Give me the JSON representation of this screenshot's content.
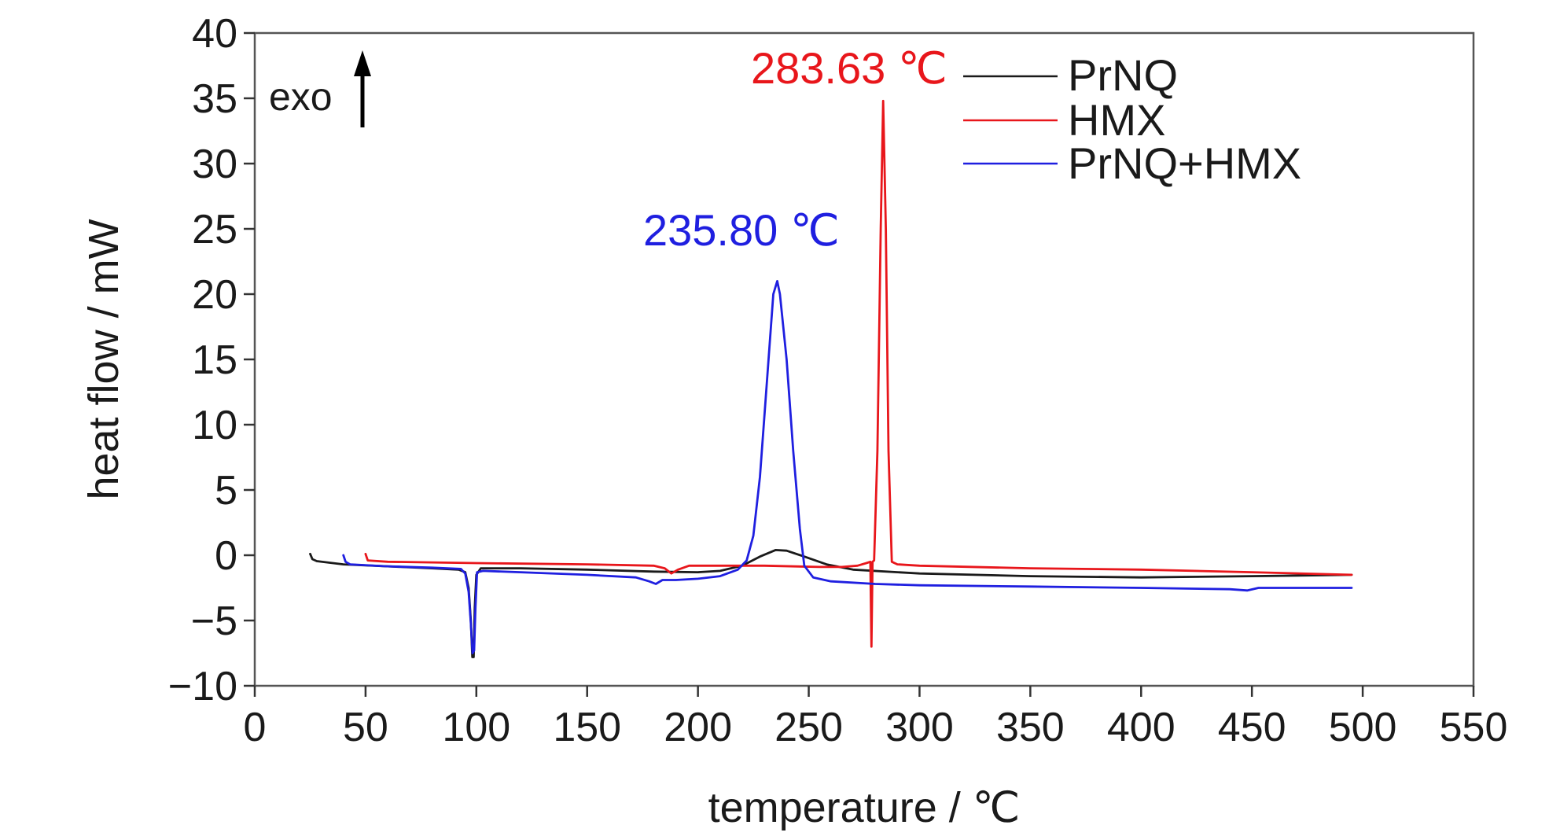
{
  "chart_data": {
    "type": "line",
    "xlabel": "temperature / ℃",
    "ylabel": "heat flow / mW",
    "xlim": [
      0,
      550
    ],
    "ylim": [
      -10,
      40
    ],
    "x_ticks": [
      "0",
      "50",
      "100",
      "150",
      "200",
      "250",
      "300",
      "350",
      "400",
      "450",
      "500",
      "550"
    ],
    "y_ticks": [
      "−10",
      "−5",
      "0",
      "5",
      "10",
      "15",
      "20",
      "25",
      "30",
      "35",
      "40"
    ],
    "x_tick_values": [
      0,
      50,
      100,
      150,
      200,
      250,
      300,
      350,
      400,
      450,
      500,
      550
    ],
    "y_tick_values": [
      -10,
      -5,
      0,
      5,
      10,
      15,
      20,
      25,
      30,
      35,
      40
    ],
    "grid": false,
    "legend_position": "top-right",
    "exo_label": "exo",
    "annotations": [
      {
        "text": "283.63 ℃",
        "color": "#e8161b",
        "x": 283.63,
        "y": 34.8
      },
      {
        "text": "235.80 ℃",
        "color": "#1f1fe0",
        "x": 235.8,
        "y": 21.0
      }
    ],
    "series": [
      {
        "name": "PrNQ",
        "color": "#1a1a1a",
        "points": [
          [
            25,
            0.1
          ],
          [
            26,
            -0.3
          ],
          [
            28,
            -0.45
          ],
          [
            40,
            -0.7
          ],
          [
            60,
            -0.85
          ],
          [
            80,
            -1.0
          ],
          [
            92,
            -1.1
          ],
          [
            95,
            -1.3
          ],
          [
            96.5,
            -2.5
          ],
          [
            97.5,
            -5
          ],
          [
            98.2,
            -7.8
          ],
          [
            98.8,
            -7.8
          ],
          [
            99.3,
            -4
          ],
          [
            100,
            -1.5
          ],
          [
            102,
            -1.0
          ],
          [
            120,
            -1.0
          ],
          [
            150,
            -1.1
          ],
          [
            180,
            -1.25
          ],
          [
            200,
            -1.3
          ],
          [
            210,
            -1.2
          ],
          [
            220,
            -0.8
          ],
          [
            228,
            -0.1
          ],
          [
            235,
            0.4
          ],
          [
            240,
            0.35
          ],
          [
            248,
            -0.1
          ],
          [
            258,
            -0.7
          ],
          [
            270,
            -1.1
          ],
          [
            300,
            -1.4
          ],
          [
            350,
            -1.6
          ],
          [
            400,
            -1.7
          ],
          [
            450,
            -1.6
          ],
          [
            495,
            -1.5
          ]
        ]
      },
      {
        "name": "HMX",
        "color": "#e8161b",
        "points": [
          [
            50,
            0.1
          ],
          [
            51,
            -0.4
          ],
          [
            60,
            -0.5
          ],
          [
            100,
            -0.6
          ],
          [
            150,
            -0.7
          ],
          [
            180,
            -0.8
          ],
          [
            185,
            -1.0
          ],
          [
            188,
            -1.4
          ],
          [
            191,
            -1.1
          ],
          [
            196,
            -0.8
          ],
          [
            200,
            -0.8
          ],
          [
            230,
            -0.8
          ],
          [
            255,
            -0.9
          ],
          [
            265,
            -0.9
          ],
          [
            272,
            -0.8
          ],
          [
            276,
            -0.6
          ],
          [
            277.8,
            -0.5
          ],
          [
            278.3,
            -7
          ],
          [
            278.8,
            -0.5
          ],
          [
            279.5,
            -0.4
          ],
          [
            281,
            8
          ],
          [
            282.5,
            25
          ],
          [
            283.6,
            34.8
          ],
          [
            284.8,
            25
          ],
          [
            286,
            8
          ],
          [
            287.5,
            -0.5
          ],
          [
            290,
            -0.7
          ],
          [
            300,
            -0.8
          ],
          [
            350,
            -1.0
          ],
          [
            400,
            -1.1
          ],
          [
            450,
            -1.3
          ],
          [
            495,
            -1.5
          ]
        ]
      },
      {
        "name": "PrNQ+HMX",
        "color": "#1f1fe0",
        "points": [
          [
            40,
            0
          ],
          [
            41,
            -0.5
          ],
          [
            43,
            -0.7
          ],
          [
            60,
            -0.85
          ],
          [
            80,
            -0.95
          ],
          [
            93,
            -1.05
          ],
          [
            95,
            -1.4
          ],
          [
            96.5,
            -2.8
          ],
          [
            97.5,
            -5.2
          ],
          [
            98.3,
            -7.5
          ],
          [
            99,
            -7.3
          ],
          [
            99.6,
            -4
          ],
          [
            100.3,
            -1.3
          ],
          [
            103,
            -1.2
          ],
          [
            120,
            -1.3
          ],
          [
            150,
            -1.5
          ],
          [
            172,
            -1.7
          ],
          [
            178,
            -2.0
          ],
          [
            181,
            -2.2
          ],
          [
            184,
            -1.9
          ],
          [
            190,
            -1.9
          ],
          [
            200,
            -1.8
          ],
          [
            210,
            -1.6
          ],
          [
            218,
            -1.1
          ],
          [
            222,
            -0.4
          ],
          [
            225,
            1.5
          ],
          [
            228,
            6
          ],
          [
            231,
            13
          ],
          [
            234,
            20
          ],
          [
            235.8,
            21
          ],
          [
            237,
            20
          ],
          [
            240,
            15
          ],
          [
            243,
            8
          ],
          [
            246,
            2
          ],
          [
            248,
            -0.8
          ],
          [
            252,
            -1.7
          ],
          [
            260,
            -2.0
          ],
          [
            280,
            -2.2
          ],
          [
            300,
            -2.3
          ],
          [
            350,
            -2.4
          ],
          [
            400,
            -2.5
          ],
          [
            440,
            -2.6
          ],
          [
            448,
            -2.7
          ],
          [
            453,
            -2.5
          ],
          [
            495,
            -2.5
          ]
        ]
      }
    ]
  }
}
